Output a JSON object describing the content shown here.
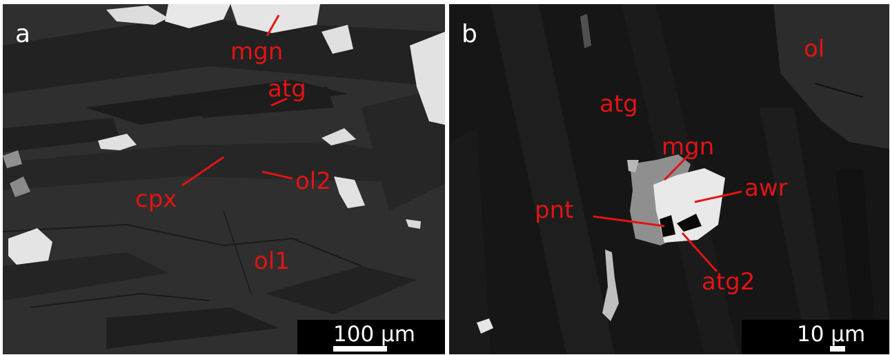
{
  "figure": {
    "panels": [
      {
        "letter": "a",
        "labels": [
          "mgn",
          "atg",
          "cpx",
          "ol2",
          "ol1"
        ],
        "scale_bar": "100 µm"
      },
      {
        "letter": "b",
        "labels": [
          "ol",
          "atg",
          "mgn",
          "awr",
          "pnt",
          "atg2"
        ],
        "scale_bar": "10 µm"
      }
    ],
    "colors": {
      "label": "#e31313",
      "panel_letter": "#ffffff",
      "scale_box": "#000000",
      "scale_bar": "#ffffff"
    }
  }
}
